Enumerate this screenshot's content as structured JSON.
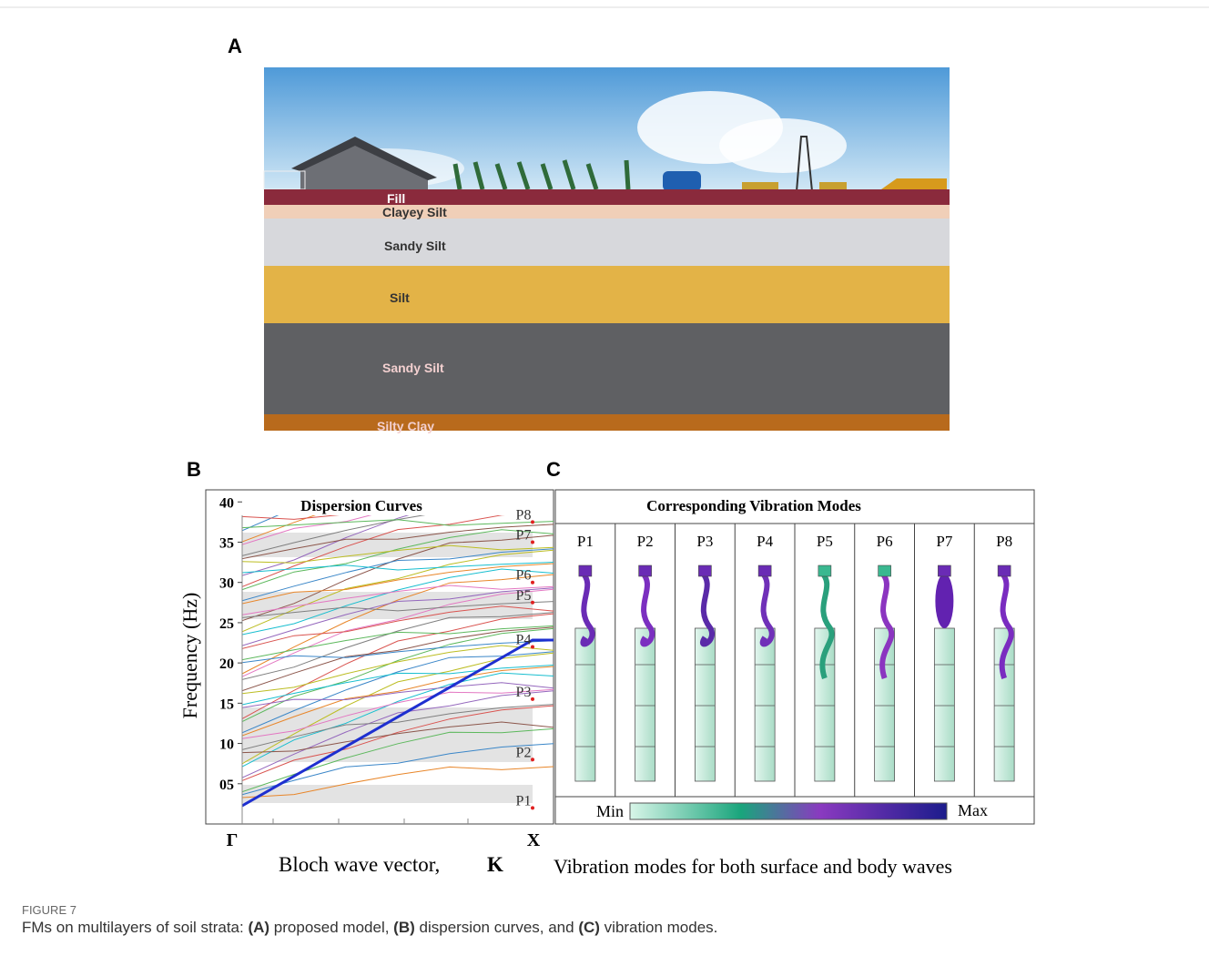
{
  "panels": {
    "a": {
      "label": "A",
      "layers": [
        "Fill",
        "Clayey Silt",
        "Sandy Silt",
        "Silt",
        "Sandy Silt",
        "Silty Clay"
      ]
    },
    "b": {
      "label": "B",
      "title": "Dispersion Curves",
      "y_label": "Frequency (Hz)",
      "x_label": "Bloch wave vector,",
      "x_label_symbol": "K",
      "x_start": "Γ",
      "x_end": "X",
      "ylim": [
        0,
        41.5
      ],
      "yticks": [
        {
          "value": 5,
          "label": "05"
        },
        10,
        15,
        20,
        25,
        30,
        35,
        40
      ],
      "modes": [
        {
          "label": "P1",
          "frequency": 2
        },
        {
          "label": "P2",
          "frequency": 8
        },
        {
          "label": "P3",
          "frequency": 15.5
        },
        {
          "label": "P4",
          "frequency": 22
        },
        {
          "label": "P5",
          "frequency": 27.5
        },
        {
          "label": "P6",
          "frequency": 30
        },
        {
          "label": "P7",
          "frequency": 35
        },
        {
          "label": "P8",
          "frequency": 37.5
        }
      ]
    },
    "c": {
      "label": "C",
      "title": "Corresponding Vibration Modes",
      "modes": [
        "P1",
        "P2",
        "P3",
        "P4",
        "P5",
        "P6",
        "P7",
        "P8"
      ],
      "scale_min": "Min",
      "scale_max": "Max",
      "x_label": "Vibration modes for both surface and body waves"
    }
  },
  "caption": {
    "figure": "FIGURE 7",
    "parts": [
      "FMs on multilayers of soil strata: ",
      "(A)",
      " proposed model, ",
      "(B)",
      " dispersion curves, and ",
      "(C)",
      " vibration modes."
    ]
  }
}
